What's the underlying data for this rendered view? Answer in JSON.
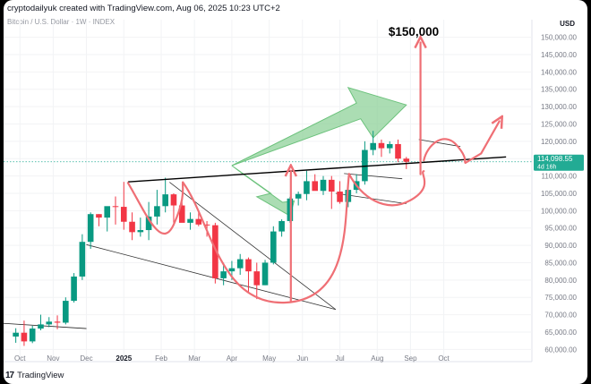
{
  "header": {
    "attribution": "cryptodailyuk created with TradingView.com, Aug 06, 2025 10:23 UTC+2"
  },
  "symbol": "Bitcoin / U.S. Dollar · 1W · INDEX",
  "currency": "USD",
  "footer": {
    "brand": "TradingView"
  },
  "price_label": {
    "price": "114,098.55",
    "countdown": "4d 16h"
  },
  "annotation": {
    "target": "$150,000"
  },
  "colors": {
    "up": "#089981",
    "down": "#f23645",
    "pattern": "#ef6f75",
    "arrow_fill": "#8fd19a",
    "arrow_stroke": "#6cc27c",
    "current": "#22ab94"
  },
  "chart_data": {
    "type": "candlestick",
    "interval": "1W",
    "y_ticks": [
      60000,
      65000,
      70000,
      75000,
      80000,
      85000,
      90000,
      95000,
      100000,
      105000,
      110000,
      115000,
      120000,
      125000,
      130000,
      135000,
      140000,
      145000,
      150000
    ],
    "y_tick_labels": [
      "60,000.00",
      "65,000.00",
      "70,000.00",
      "75,000.00",
      "80,000.00",
      "85,000.00",
      "90,000.00",
      "95,000.00",
      "100,000.00",
      "105,000.00",
      "110,000.00",
      "115,000.00",
      "120,000.00",
      "125,000.00",
      "130,000.00",
      "135,000.00",
      "140,000.00",
      "145,000.00",
      "150,000.00"
    ],
    "ylim": [
      57500,
      153000
    ],
    "x_labels": [
      {
        "label": "Oct",
        "week": 1
      },
      {
        "label": "Nov",
        "week": 5
      },
      {
        "label": "Dec",
        "week": 9
      },
      {
        "label": "2025",
        "week": 13.5,
        "bold": true
      },
      {
        "label": "Feb",
        "week": 18
      },
      {
        "label": "Mar",
        "week": 22
      },
      {
        "label": "Apr",
        "week": 26.5
      },
      {
        "label": "May",
        "week": 31
      },
      {
        "label": "Jun",
        "week": 35
      },
      {
        "label": "Jul",
        "week": 39.5
      },
      {
        "label": "Aug",
        "week": 44
      },
      {
        "label": "Sep",
        "week": 48
      },
      {
        "label": "Oct",
        "week": 52
      }
    ],
    "candles": [
      {
        "o": 63700,
        "h": 66100,
        "l": 61900,
        "c": 64800
      },
      {
        "o": 64800,
        "h": 68300,
        "l": 61000,
        "c": 62300
      },
      {
        "o": 62300,
        "h": 66800,
        "l": 61800,
        "c": 66000
      },
      {
        "o": 66000,
        "h": 70000,
        "l": 65500,
        "c": 67200
      },
      {
        "o": 67200,
        "h": 69300,
        "l": 66400,
        "c": 68000
      },
      {
        "o": 68000,
        "h": 69800,
        "l": 65800,
        "c": 67700
      },
      {
        "o": 67700,
        "h": 75000,
        "l": 67200,
        "c": 74000
      },
      {
        "o": 74000,
        "h": 82000,
        "l": 73500,
        "c": 81000
      },
      {
        "o": 81000,
        "h": 93200,
        "l": 80000,
        "c": 91000
      },
      {
        "o": 91000,
        "h": 99500,
        "l": 89000,
        "c": 99000
      },
      {
        "o": 99000,
        "h": 99000,
        "l": 95500,
        "c": 98000
      },
      {
        "o": 98000,
        "h": 100500,
        "l": 94000,
        "c": 101300
      },
      {
        "o": 101300,
        "h": 104100,
        "l": 96000,
        "c": 101100
      },
      {
        "o": 101100,
        "h": 108300,
        "l": 94500,
        "c": 96800
      },
      {
        "o": 96800,
        "h": 99500,
        "l": 91500,
        "c": 93800
      },
      {
        "o": 93800,
        "h": 98000,
        "l": 92500,
        "c": 94400
      },
      {
        "o": 94400,
        "h": 102500,
        "l": 91500,
        "c": 98300
      },
      {
        "o": 98300,
        "h": 106000,
        "l": 96000,
        "c": 101300
      },
      {
        "o": 101300,
        "h": 109500,
        "l": 99500,
        "c": 104700
      },
      {
        "o": 104700,
        "h": 105000,
        "l": 96500,
        "c": 101500
      },
      {
        "o": 101500,
        "h": 102500,
        "l": 97000,
        "c": 96500
      },
      {
        "o": 96500,
        "h": 99500,
        "l": 94500,
        "c": 97600
      },
      {
        "o": 97600,
        "h": 99500,
        "l": 95500,
        "c": 96000
      },
      {
        "o": 96000,
        "h": 97000,
        "l": 92500,
        "c": 95800
      },
      {
        "o": 95800,
        "h": 96500,
        "l": 79000,
        "c": 80500
      },
      {
        "o": 80500,
        "h": 85000,
        "l": 78500,
        "c": 82500
      },
      {
        "o": 82500,
        "h": 85500,
        "l": 80000,
        "c": 83400
      },
      {
        "o": 83400,
        "h": 87500,
        "l": 81500,
        "c": 86000
      },
      {
        "o": 86000,
        "h": 86500,
        "l": 76500,
        "c": 82500
      },
      {
        "o": 82500,
        "h": 85000,
        "l": 74500,
        "c": 78500
      },
      {
        "o": 78500,
        "h": 85800,
        "l": 78500,
        "c": 85000
      },
      {
        "o": 85000,
        "h": 95500,
        "l": 84500,
        "c": 94000
      },
      {
        "o": 94000,
        "h": 97500,
        "l": 92500,
        "c": 97000
      },
      {
        "o": 97000,
        "h": 104000,
        "l": 96500,
        "c": 103500
      },
      {
        "o": 103500,
        "h": 105500,
        "l": 101500,
        "c": 104800
      },
      {
        "o": 104800,
        "h": 111500,
        "l": 103000,
        "c": 108500
      },
      {
        "o": 108500,
        "h": 110500,
        "l": 106000,
        "c": 105700
      },
      {
        "o": 105700,
        "h": 110000,
        "l": 104500,
        "c": 108900
      },
      {
        "o": 108900,
        "h": 110000,
        "l": 100500,
        "c": 105500
      },
      {
        "o": 105500,
        "h": 108500,
        "l": 102000,
        "c": 102500
      },
      {
        "o": 102500,
        "h": 107000,
        "l": 101000,
        "c": 106000
      },
      {
        "o": 106000,
        "h": 110500,
        "l": 105000,
        "c": 108500
      },
      {
        "o": 108500,
        "h": 120000,
        "l": 107500,
        "c": 117500
      },
      {
        "o": 117500,
        "h": 123000,
        "l": 116000,
        "c": 119500
      },
      {
        "o": 119500,
        "h": 120500,
        "l": 115500,
        "c": 118000
      },
      {
        "o": 118000,
        "h": 120000,
        "l": 116500,
        "c": 119200
      },
      {
        "o": 119200,
        "h": 120500,
        "l": 114000,
        "c": 115000
      },
      {
        "o": 115000,
        "h": 115500,
        "l": 112000,
        "c": 114100
      }
    ],
    "last_price": 114098.55
  }
}
